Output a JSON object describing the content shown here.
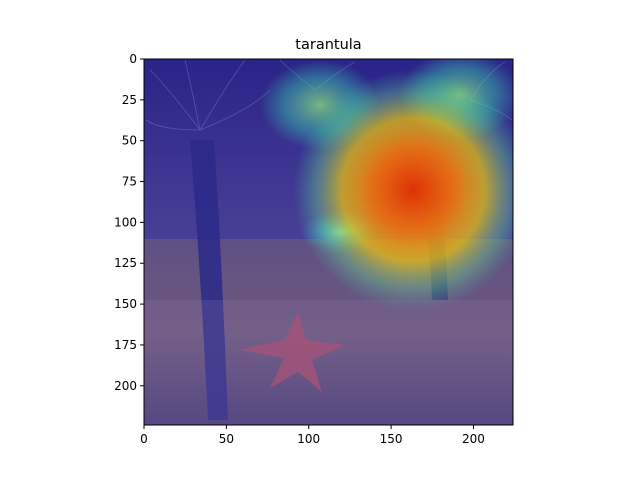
{
  "chart_data": {
    "type": "heatmap",
    "title": "tarantula",
    "xlabel": "",
    "ylabel": "",
    "xlim": [
      0,
      224
    ],
    "ylim": [
      224,
      0
    ],
    "xticks": [
      0,
      50,
      100,
      150,
      200
    ],
    "yticks": [
      0,
      25,
      50,
      75,
      100,
      125,
      150,
      175,
      200
    ],
    "grid": false,
    "colormap": "jet",
    "overlay_alpha": 0.5,
    "background_image": "underwater scene with sea anemones and a starfish",
    "activation_regions": [
      {
        "cx": 165,
        "cy": 80,
        "rx": 40,
        "ry": 48,
        "peak": 1.0
      },
      {
        "cx": 110,
        "cy": 30,
        "rx": 28,
        "ry": 22,
        "peak": 0.45
      },
      {
        "cx": 190,
        "cy": 25,
        "rx": 30,
        "ry": 25,
        "peak": 0.4
      },
      {
        "cx": 120,
        "cy": 105,
        "rx": 22,
        "ry": 16,
        "peak": 0.45
      }
    ],
    "colors": {
      "low": "#1a1a9c",
      "mid": "#37d7a0",
      "high": "#ff4a00",
      "peak": "#e83000"
    }
  }
}
